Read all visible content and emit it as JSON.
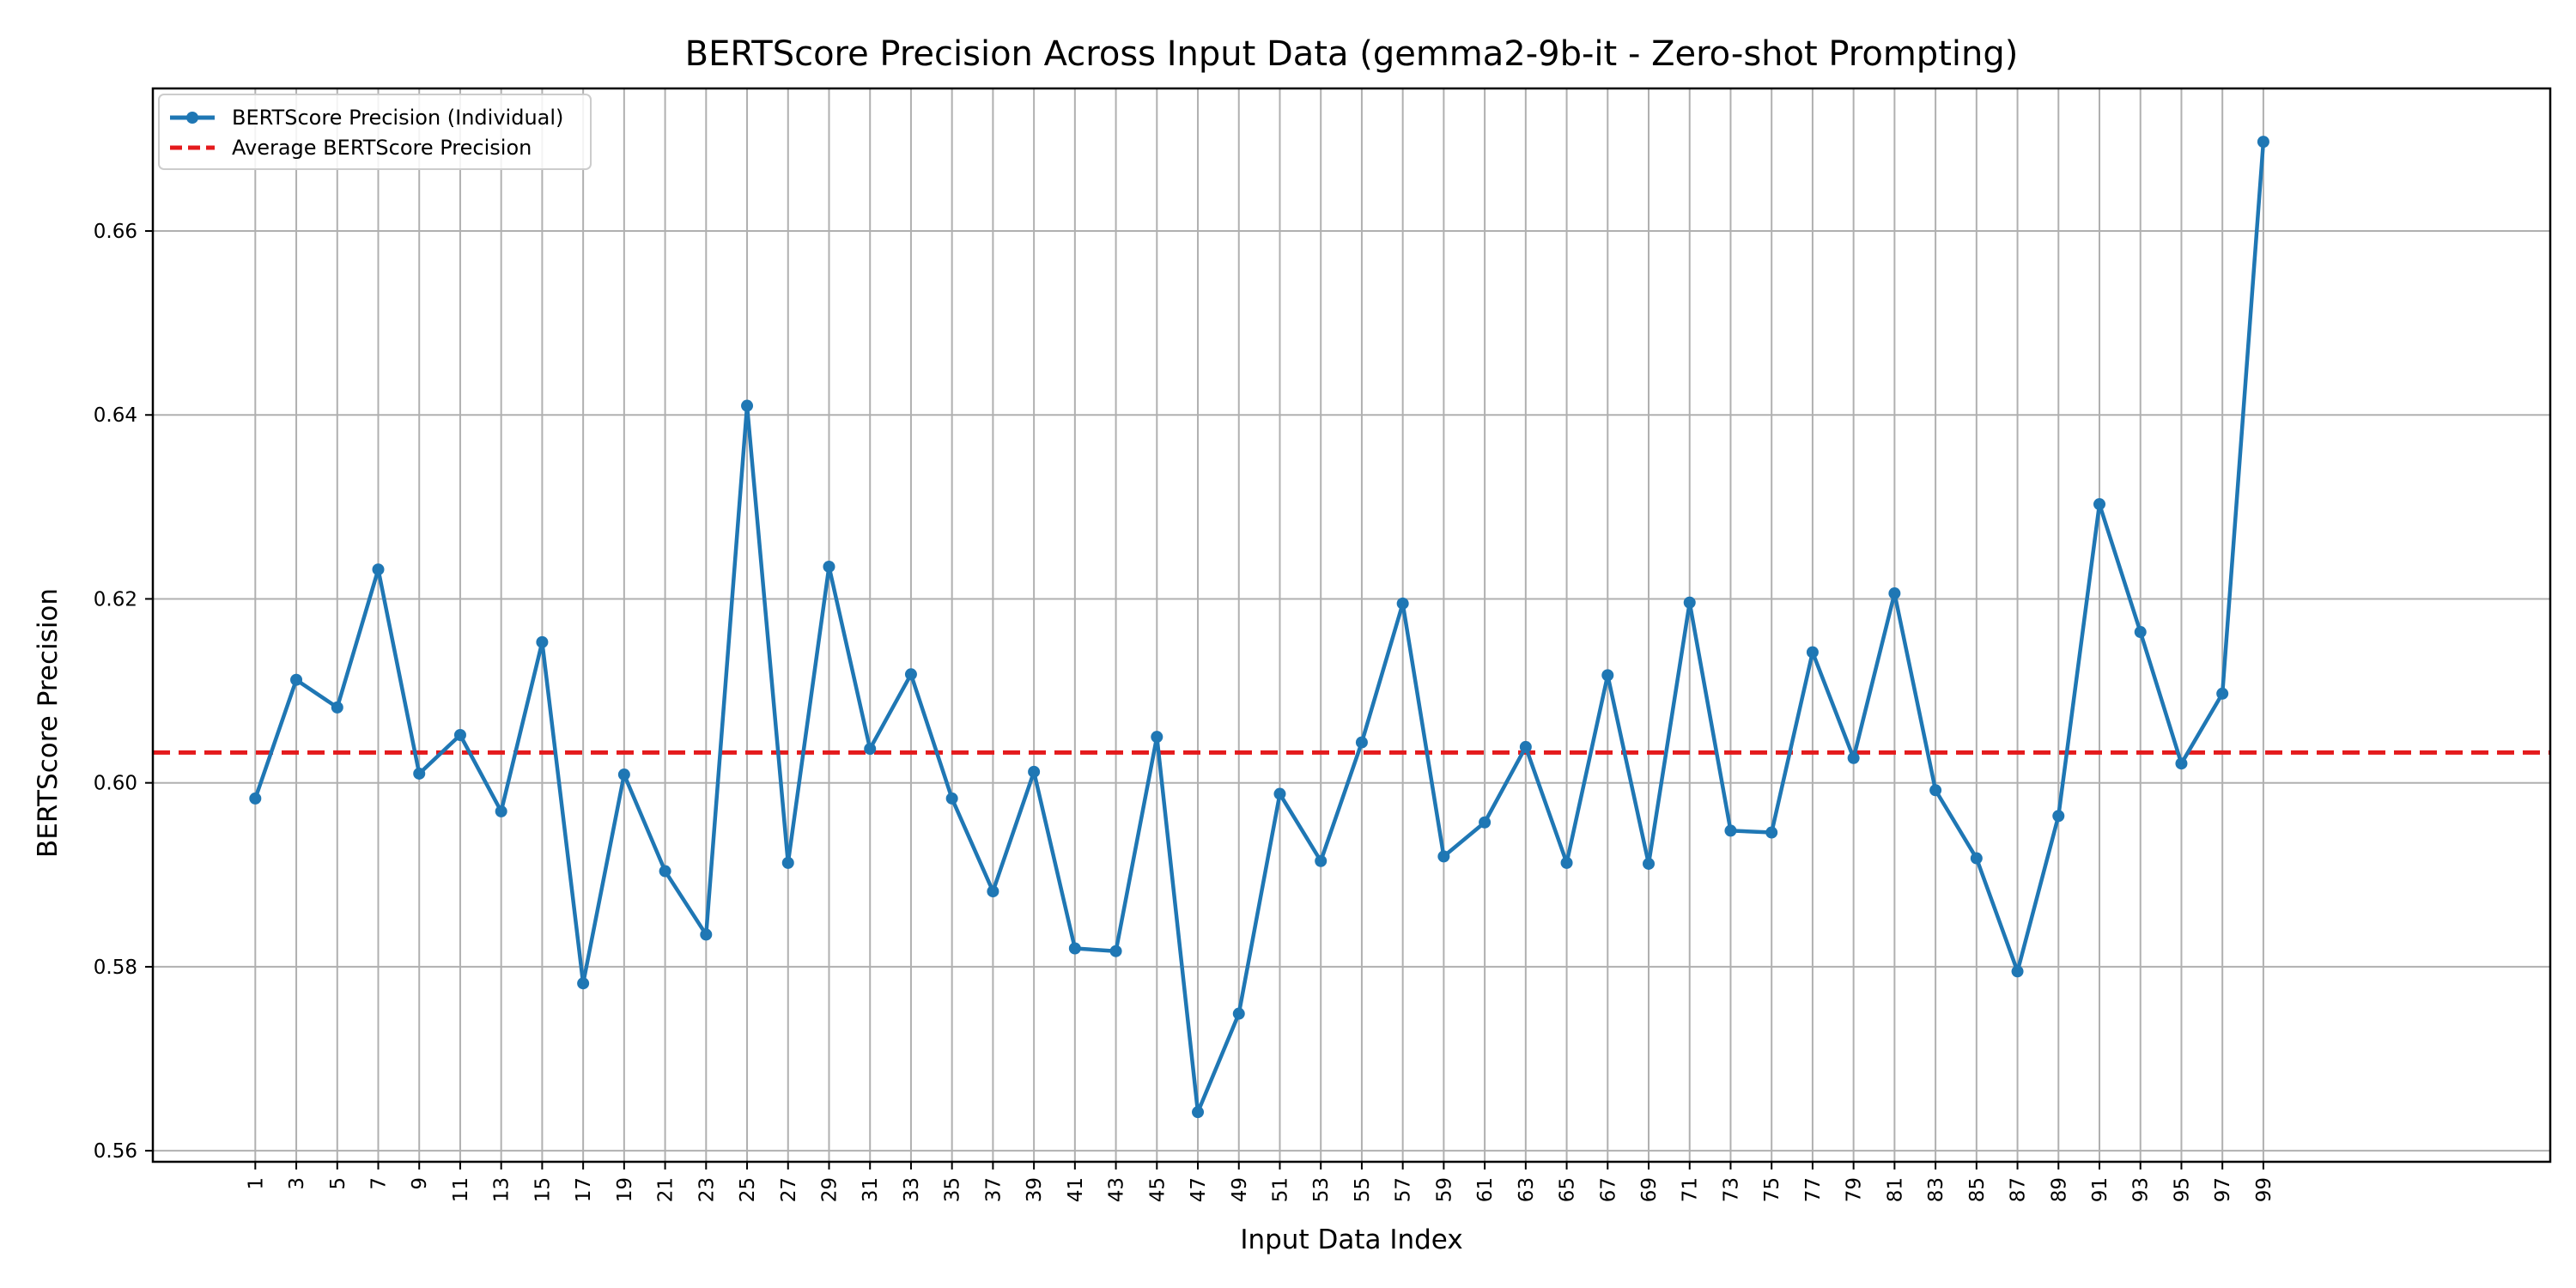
{
  "chart_data": {
    "type": "line",
    "title": "BERTScore Precision Across Input Data (gemma2-9b-it - Zero-shot Prompting)",
    "xlabel": "Input Data Index",
    "ylabel": "BERTScore Precision",
    "xlim": [
      -4,
      113
    ],
    "ylim": [
      0.5588,
      0.6755
    ],
    "grid": true,
    "legend_position": "upper-left",
    "xticks": [
      1,
      3,
      5,
      7,
      9,
      11,
      13,
      15,
      17,
      19,
      21,
      23,
      25,
      27,
      29,
      31,
      33,
      35,
      37,
      39,
      41,
      43,
      45,
      47,
      49,
      51,
      53,
      55,
      57,
      59,
      61,
      63,
      65,
      67,
      69,
      71,
      73,
      75,
      77,
      79,
      81,
      83,
      85,
      87,
      89,
      91,
      93,
      95,
      97,
      99
    ],
    "yticks": [
      0.56,
      0.58,
      0.6,
      0.62,
      0.64,
      0.66
    ],
    "ytick_labels": [
      "0.56",
      "0.58",
      "0.60",
      "0.62",
      "0.64",
      "0.66"
    ],
    "series": [
      {
        "name": "BERTScore Precision (Individual)",
        "color": "#1f77b4",
        "style": "solid-with-markers",
        "x": [
          1,
          3,
          5,
          7,
          9,
          11,
          13,
          15,
          17,
          19,
          21,
          23,
          25,
          27,
          29,
          31,
          33,
          35,
          37,
          39,
          41,
          43,
          45,
          47,
          49,
          51,
          53,
          55,
          57,
          59,
          61,
          63,
          65,
          67,
          69,
          71,
          73,
          75,
          77,
          79,
          81,
          83,
          85,
          87,
          89,
          91,
          93,
          95,
          97,
          99
        ],
        "values": [
          0.5983,
          0.6112,
          0.6082,
          0.6232,
          0.601,
          0.6052,
          0.5969,
          0.6153,
          0.5782,
          0.6009,
          0.5904,
          0.5835,
          0.641,
          0.5913,
          0.6235,
          0.6037,
          0.6118,
          0.5983,
          0.5882,
          0.6012,
          0.582,
          0.5817,
          0.605,
          0.5642,
          0.5749,
          0.5988,
          0.5915,
          0.6044,
          0.6195,
          0.592,
          0.5957,
          0.6039,
          0.5913,
          0.6117,
          0.5912,
          0.6196,
          0.5948,
          0.5946,
          0.6142,
          0.6027,
          0.6206,
          0.5992,
          0.5918,
          0.5795,
          0.5964,
          0.6303,
          0.6164,
          0.6021,
          0.6097,
          0.6697
        ]
      },
      {
        "name": "Average BERTScore Precision",
        "color": "#e41a1c",
        "style": "dashed",
        "value": 0.6033
      }
    ]
  }
}
